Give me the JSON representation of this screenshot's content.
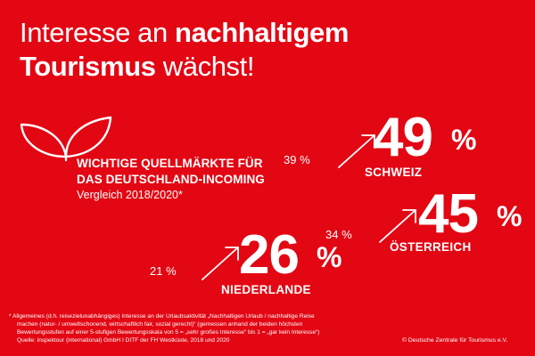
{
  "colors": {
    "background": "#e30613",
    "foreground": "#ffffff"
  },
  "headline": {
    "line1_light": "Interesse an ",
    "line1_bold": "nachhaltigem",
    "line2_bold": "Tourismus",
    "line2_light": " wächst!"
  },
  "icon": "leaf-sprout-icon",
  "subtitle": {
    "line1": "WICHTIGE QUELLMÄRKTE FÜR",
    "line2": "DAS DEUTSCHLAND-INCOMING",
    "line3": "Vergleich 2018/2020*"
  },
  "markets": [
    {
      "country": "SCHWEIZ",
      "previous": "39 %",
      "current": "49",
      "unit": "%",
      "previous_value": 39,
      "current_value": 49
    },
    {
      "country": "ÖSTERREICH",
      "previous": "34 %",
      "current": "45",
      "unit": "%",
      "previous_value": 34,
      "current_value": 45
    },
    {
      "country": "NIEDERLANDE",
      "previous": "21 %",
      "current": "26",
      "unit": "%",
      "previous_value": 21,
      "current_value": 26
    }
  ],
  "footnote": {
    "line1": "* Allgemeines (d.h. reisezielunabhängiges) Interesse an der Urlaubsaktivität „Nachhaltigen Urlaub / nachhaltige Reise",
    "line2": "machen (natur- / umweltschonend, wirtschaftlich fair, sozial gerecht)“ (gemessen anhand der beiden höchsten",
    "line3": "Bewertungsstufen auf einer 5-stufigen Bewertungsskala von 5 = „sehr großes Interesse“ bis 1 = „gar kein Interesse“)",
    "line4": "Quelle: inspektour (international) GmbH I DITF der FH Westküste, 2018 und 2020"
  },
  "copyright": "© Deutsche Zentrale für Tourismus e.V."
}
